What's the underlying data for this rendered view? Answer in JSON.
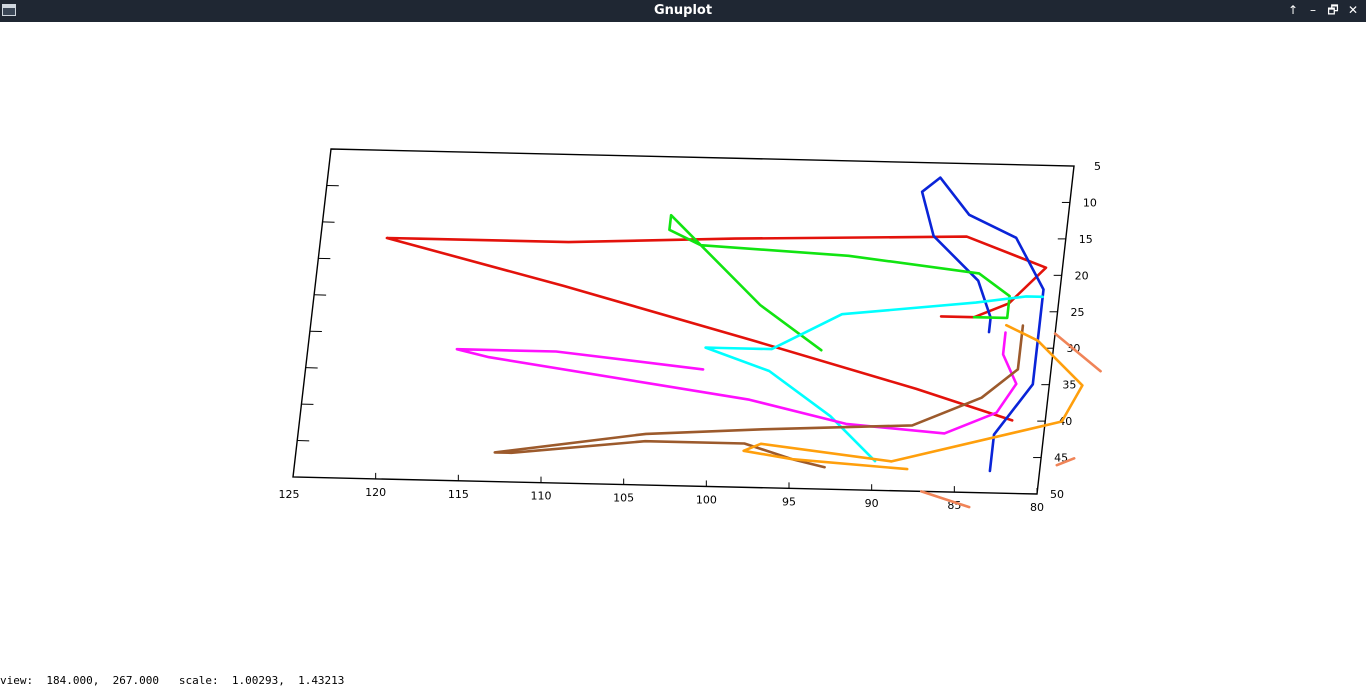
{
  "window": {
    "title": "Gnuplot",
    "controls": [
      "↑",
      "–",
      "🗗",
      "✕"
    ]
  },
  "status": {
    "view_label": "view:",
    "view_value": "184.000,  267.000",
    "scale_label": "scale:",
    "scale_value": "1.00293,  1.43213"
  },
  "chart_data": {
    "type": "line",
    "view": "3d-splot",
    "title": "",
    "xlabel": "",
    "ylabel": "",
    "grid": false,
    "x_ticks": [
      120,
      115,
      110,
      105,
      100,
      95,
      90,
      85,
      80
    ],
    "y_ticks": [
      5,
      10,
      15,
      20,
      25,
      30,
      35,
      40,
      45,
      50
    ],
    "xlim": [
      125,
      80
    ],
    "ylim": [
      5,
      50
    ],
    "corner_tick_label": "125",
    "series": [
      {
        "color": "#e3120b",
        "points": [
          [
            82,
            40
          ],
          [
            88,
            36
          ],
          [
            98,
            30
          ],
          [
            110,
            23
          ],
          [
            121,
            17
          ],
          [
            119,
            17
          ],
          [
            110,
            17
          ],
          [
            100,
            16
          ],
          [
            86,
            15
          ],
          [
            81,
            19
          ],
          [
            83,
            24
          ],
          [
            85,
            26
          ],
          [
            87,
            26
          ]
        ]
      },
      {
        "color": "#0a24d8",
        "points": [
          [
            83,
            47
          ],
          [
            83,
            42
          ],
          [
            81,
            35
          ],
          [
            81,
            27
          ],
          [
            81,
            22
          ],
          [
            83,
            15
          ],
          [
            86,
            12
          ],
          [
            88,
            7
          ],
          [
            89,
            9
          ],
          [
            88,
            15
          ],
          [
            85,
            21
          ],
          [
            84,
            26
          ],
          [
            84,
            28
          ]
        ]
      },
      {
        "color": "#11e411",
        "points": [
          [
            94,
            31
          ],
          [
            98,
            25
          ],
          [
            104,
            13
          ],
          [
            104,
            15
          ],
          [
            102,
            17
          ],
          [
            93,
            18
          ],
          [
            85,
            20
          ],
          [
            83,
            23
          ],
          [
            83,
            26
          ],
          [
            85,
            26
          ]
        ]
      },
      {
        "color": "#00ffff",
        "points": [
          [
            90,
            46
          ],
          [
            93,
            40
          ],
          [
            97,
            34
          ],
          [
            101,
            31
          ],
          [
            100,
            31
          ],
          [
            97,
            31
          ],
          [
            93,
            26
          ],
          [
            85,
            24
          ],
          [
            82,
            23
          ],
          [
            81,
            23
          ]
        ]
      },
      {
        "color": "#ff10ff",
        "points": [
          [
            101,
            34
          ],
          [
            110,
            32
          ],
          [
            115,
            32
          ],
          [
            116,
            32
          ],
          [
            114,
            33
          ],
          [
            98,
            38
          ],
          [
            92,
            41
          ],
          [
            86,
            42
          ],
          [
            83,
            39
          ],
          [
            82,
            35
          ],
          [
            83,
            31
          ],
          [
            83,
            28
          ]
        ]
      },
      {
        "color": "#9c5a2c",
        "points": [
          [
            93,
            47
          ],
          [
            95,
            46
          ],
          [
            98,
            44
          ],
          [
            104,
            44
          ],
          [
            112,
            46
          ],
          [
            113,
            46
          ],
          [
            104,
            43
          ],
          [
            97,
            42
          ],
          [
            88,
            41
          ],
          [
            84,
            37
          ],
          [
            82,
            33
          ],
          [
            82,
            27
          ]
        ]
      },
      {
        "color": "#ff9f0c",
        "points": [
          [
            88,
            47
          ],
          [
            95,
            46
          ],
          [
            98,
            45
          ],
          [
            97,
            44
          ],
          [
            89,
            46
          ],
          [
            79,
            40
          ],
          [
            78,
            35
          ],
          [
            81,
            29
          ],
          [
            83,
            27
          ]
        ]
      },
      {
        "color": "#f08458",
        "points": [
          [
            84,
            52
          ],
          [
            87,
            50
          ],
          [
            87,
            50
          ]
        ]
      },
      {
        "color": "#f08458",
        "points": [
          [
            80,
            28
          ],
          [
            77,
            33
          ]
        ]
      },
      {
        "color": "#f08458",
        "points": [
          [
            79,
            46
          ],
          [
            78,
            45
          ]
        ]
      }
    ]
  }
}
